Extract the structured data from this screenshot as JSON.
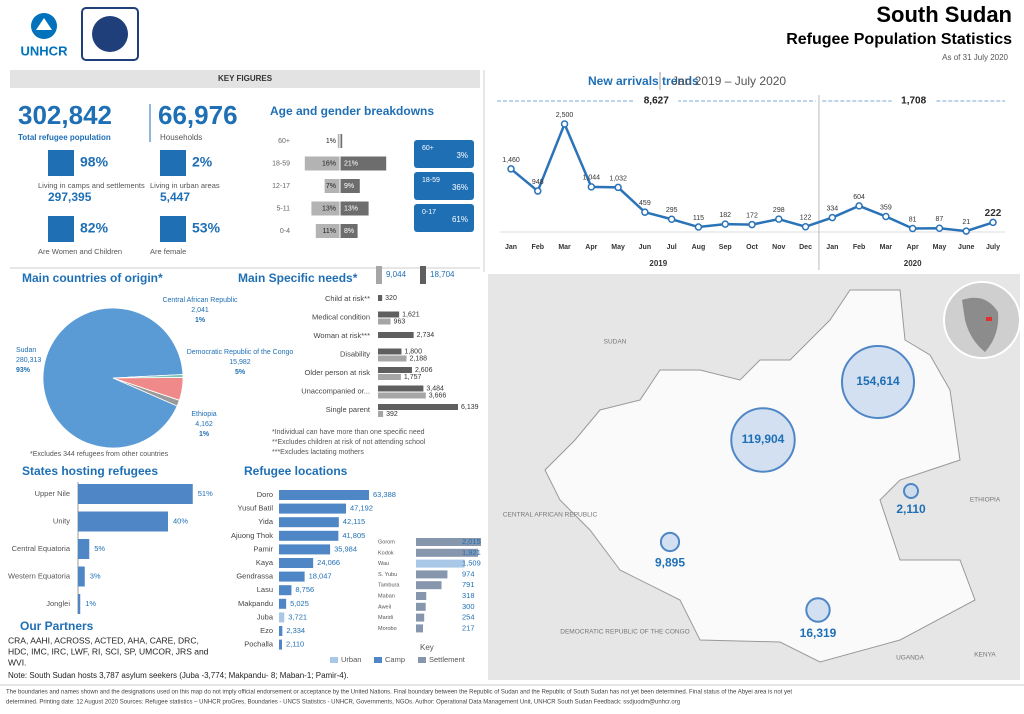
{
  "header": {
    "org": "UNHCR",
    "title": "South Sudan",
    "subtitle": "Refugee Population Statistics",
    "date": "As of 31 July 2020"
  },
  "key_figures": {
    "heading": "KEY FIGURES",
    "total": {
      "value": "302,842",
      "label": "Total refugee population"
    },
    "households": {
      "value": "66,976",
      "label": "Households"
    },
    "stats": [
      {
        "pct": "98%",
        "label": "Living in camps and settlements",
        "count": "297,395"
      },
      {
        "pct": "2%",
        "label": "Living in urban areas",
        "count": "5,447"
      },
      {
        "pct": "82%",
        "label": "Are Women and Children"
      },
      {
        "pct": "53%",
        "label": "Are female"
      }
    ]
  },
  "age_gender": {
    "title": "Age and gender breakdowns",
    "categories": [
      "60+",
      "18-59",
      "12-17",
      "5-11",
      "0-4"
    ],
    "male": [
      1,
      16,
      7,
      13,
      11
    ],
    "male_labels": [
      "1%",
      "16%",
      "7%",
      "13%",
      "11%"
    ],
    "female": [
      1,
      21,
      9,
      13,
      8
    ],
    "female_labels": [
      "1%",
      "21%",
      "9%",
      "13%",
      "8%"
    ],
    "male_color": "#b3b3b3",
    "female_color": "#6d6d6d",
    "groups": [
      {
        "label": "60+",
        "value": "3%"
      },
      {
        "label": "18-59",
        "value": "36%"
      },
      {
        "label": "0-17",
        "value": "61%"
      }
    ]
  },
  "new_arrivals": {
    "title": "New arrivals trends",
    "period": "Jan 2019 – July 2020",
    "color": "#2a73b8",
    "periods": [
      {
        "label": "2019",
        "total": "8,627"
      },
      {
        "label": "2020",
        "total": "1,708"
      }
    ],
    "categories": [
      "Jan",
      "Feb",
      "Mar",
      "Apr",
      "May",
      "Jun",
      "Jul",
      "Aug",
      "Sep",
      "Oct",
      "Nov",
      "Dec",
      "Jan",
      "Feb",
      "Mar",
      "Apr",
      "May",
      "June",
      "July"
    ],
    "values": [
      1460,
      948,
      2500,
      1044,
      1032,
      459,
      295,
      115,
      182,
      172,
      298,
      122,
      334,
      604,
      359,
      81,
      87,
      21,
      222
    ],
    "value_labels": [
      "1,460",
      "948",
      "2,500",
      "1,044",
      "1,032",
      "459",
      "295",
      "115",
      "182",
      "172",
      "298",
      "122",
      "334",
      "604",
      "359",
      "81",
      "87",
      "21",
      "222"
    ]
  },
  "origin": {
    "title": "Main countries of origin*",
    "note": "*Excludes 344 refugees from other countries",
    "categories": [
      "Sudan",
      "Central African Republic",
      "Democratic Republic of the Congo",
      "Ethiopia"
    ],
    "values": [
      280313,
      2041,
      15982,
      4162
    ],
    "value_labels": [
      "280,313",
      "2,041",
      "15,982",
      "4,162"
    ],
    "pct_labels": [
      "93%",
      "1%",
      "5%",
      "1%"
    ],
    "colors": [
      "#5b9bd5",
      "#7fc4b8",
      "#f08a8a",
      "#9a9a9a"
    ]
  },
  "needs": {
    "title": "Main Specific needs*",
    "categories": [
      "Child at risk**",
      "Medical condition",
      "Woman at risk***",
      "Disability",
      "Older person at risk",
      "Unaccompanied or...",
      "Single parent"
    ],
    "series": [
      {
        "total": "9,044",
        "color": "#a6a6a6",
        "values": [
          null,
          963,
          null,
          2188,
          1757,
          3666,
          392
        ],
        "value_labels": [
          null,
          "963",
          null,
          "2,188",
          "1,757",
          "3,666",
          "392"
        ]
      },
      {
        "total": "18,704",
        "color": "#5f5f5f",
        "values": [
          320,
          1621,
          2734,
          1800,
          2606,
          3484,
          6139
        ],
        "value_labels": [
          "320",
          "1,621",
          "2,734",
          "1,800",
          "2,606",
          "3,484",
          "6,139"
        ]
      }
    ],
    "notes": [
      "*Individual can have more than one specific need",
      "**Excludes children at risk of not attending school",
      "***Excludes lactating mothers"
    ]
  },
  "states": {
    "title": "States hosting refugees",
    "categories": [
      "Upper Nile",
      "Unity",
      "Central Equatoria",
      "Western Equatoria",
      "Jonglei"
    ],
    "values": [
      51,
      40,
      5,
      3,
      1
    ],
    "value_labels": [
      "51%",
      "40%",
      "5%",
      "3%",
      "1%"
    ],
    "color": "#4f86c6"
  },
  "locations": {
    "title": "Refugee locations",
    "main": {
      "categories": [
        "Doro",
        "Yusuf Batil",
        "Yida",
        "Ajuong Thok",
        "Pamir",
        "Kaya",
        "Gendrassa",
        "Lasu",
        "Makpandu",
        "Juba",
        "Ezo",
        "Pochalla"
      ],
      "values": [
        63388,
        47192,
        42115,
        41805,
        35984,
        24066,
        18047,
        8756,
        5025,
        3721,
        2334,
        2110
      ],
      "value_labels": [
        "63,388",
        "47,192",
        "42,115",
        "41,805",
        "35,984",
        "24,066",
        "18,047",
        "8,756",
        "5,025",
        "3,721",
        "2,334",
        "2,110"
      ],
      "colors": [
        "#4f86c6",
        "#4f86c6",
        "#4f86c6",
        "#4f86c6",
        "#4f86c6",
        "#4f86c6",
        "#4f86c6",
        "#4f86c6",
        "#4f86c6",
        "#a9c8e8",
        "#4f86c6",
        "#4f86c6"
      ]
    },
    "other": {
      "categories": [
        "Gorom",
        "Kodok",
        "Wau",
        "S. Yubu",
        "Tambura",
        "Maban",
        "Aweil",
        "Maridi",
        "Morobo"
      ],
      "values": [
        2015,
        1921,
        1509,
        974,
        791,
        318,
        300,
        254,
        217
      ],
      "value_labels": [
        "2,015",
        "1,921",
        "1,509",
        "974",
        "791",
        "318",
        "300",
        "254",
        "217"
      ],
      "colors": [
        "#8596ad",
        "#8596ad",
        "#a9c8e8",
        "#8596ad",
        "#8596ad",
        "#8596ad",
        "#8596ad",
        "#8596ad",
        "#8596ad"
      ]
    },
    "key": "Key",
    "legend": [
      {
        "label": "Urban",
        "color": "#a9c8e8"
      },
      {
        "label": "Camp",
        "color": "#4f86c6"
      },
      {
        "label": "Settlement",
        "color": "#8596ad"
      }
    ]
  },
  "partners": {
    "title": "Our Partners",
    "lines": [
      "CRA, AAHI, ACROSS, ACTED, AHA, CARE, DRC,",
      "HDC, IMC, IRC, LWF, RI, SCI, SP, UMCOR, JRS and",
      "WVI."
    ]
  },
  "note": "Note: South Sudan hosts 3,787 asylum seekers (Juba -3,774; Makpandu- 8; Maban-1; Pamir-4).",
  "map": {
    "countries": [
      "SUDAN",
      "ETHIOPIA",
      "CENTRAL AFRICAN REPUBLIC",
      "DEMOCRATIC REPUBLIC OF THE CONGO",
      "UGANDA",
      "KENYA"
    ],
    "bubbles": {
      "values": [
        154614,
        119904,
        9895,
        16319,
        2110
      ],
      "value_labels": [
        "154,614",
        "119,904",
        "9,895",
        "16,319",
        "2,110"
      ],
      "color": "#c9daf0"
    }
  },
  "footer": [
    "The boundaries and names shown and the designations used on this map do not imply official endorsement or acceptance by the United Nations. Final boundary between the Republic of Sudan and the Republic of South Sudan has not yet been determined. Final status of the Abyei area is not yet",
    "determined. Printing date: 12 August 2020     Sources: Refugee statistics – UNHCR proGres, Boundaries - UNCS Statistics - UNHCR, Governments, NGOs.     Author: Operational Data Management Unit, UNHCR South Sudan     Feedback: ssdjuodm@unhcr.org"
  ]
}
